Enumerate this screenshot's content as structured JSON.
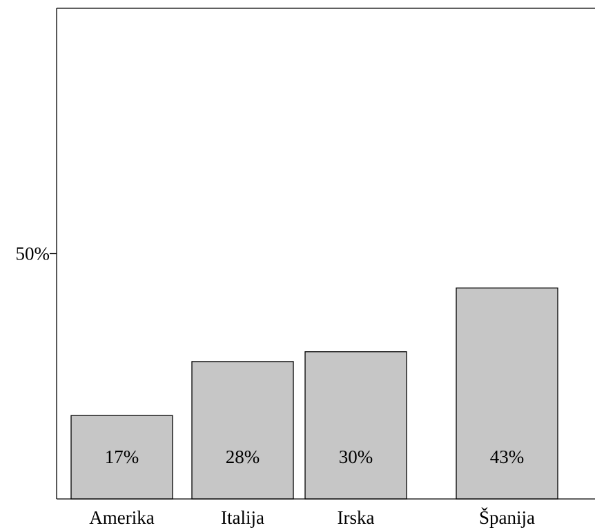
{
  "chart_data": {
    "type": "bar",
    "categories": [
      "Amerika",
      "Italija",
      "Irska",
      "Španija"
    ],
    "values": [
      17,
      28,
      30,
      43
    ],
    "value_labels": [
      "17%",
      "28%",
      "30%",
      "43%"
    ],
    "ylim": [
      0,
      100
    ],
    "yticks": [
      50
    ],
    "ytick_labels": [
      "50%"
    ],
    "title": "",
    "xlabel": "",
    "ylabel": "",
    "grid": false,
    "legend": "none",
    "colors": {
      "bar_fill": "#c6c6c6",
      "bar_stroke": "#000000"
    }
  }
}
